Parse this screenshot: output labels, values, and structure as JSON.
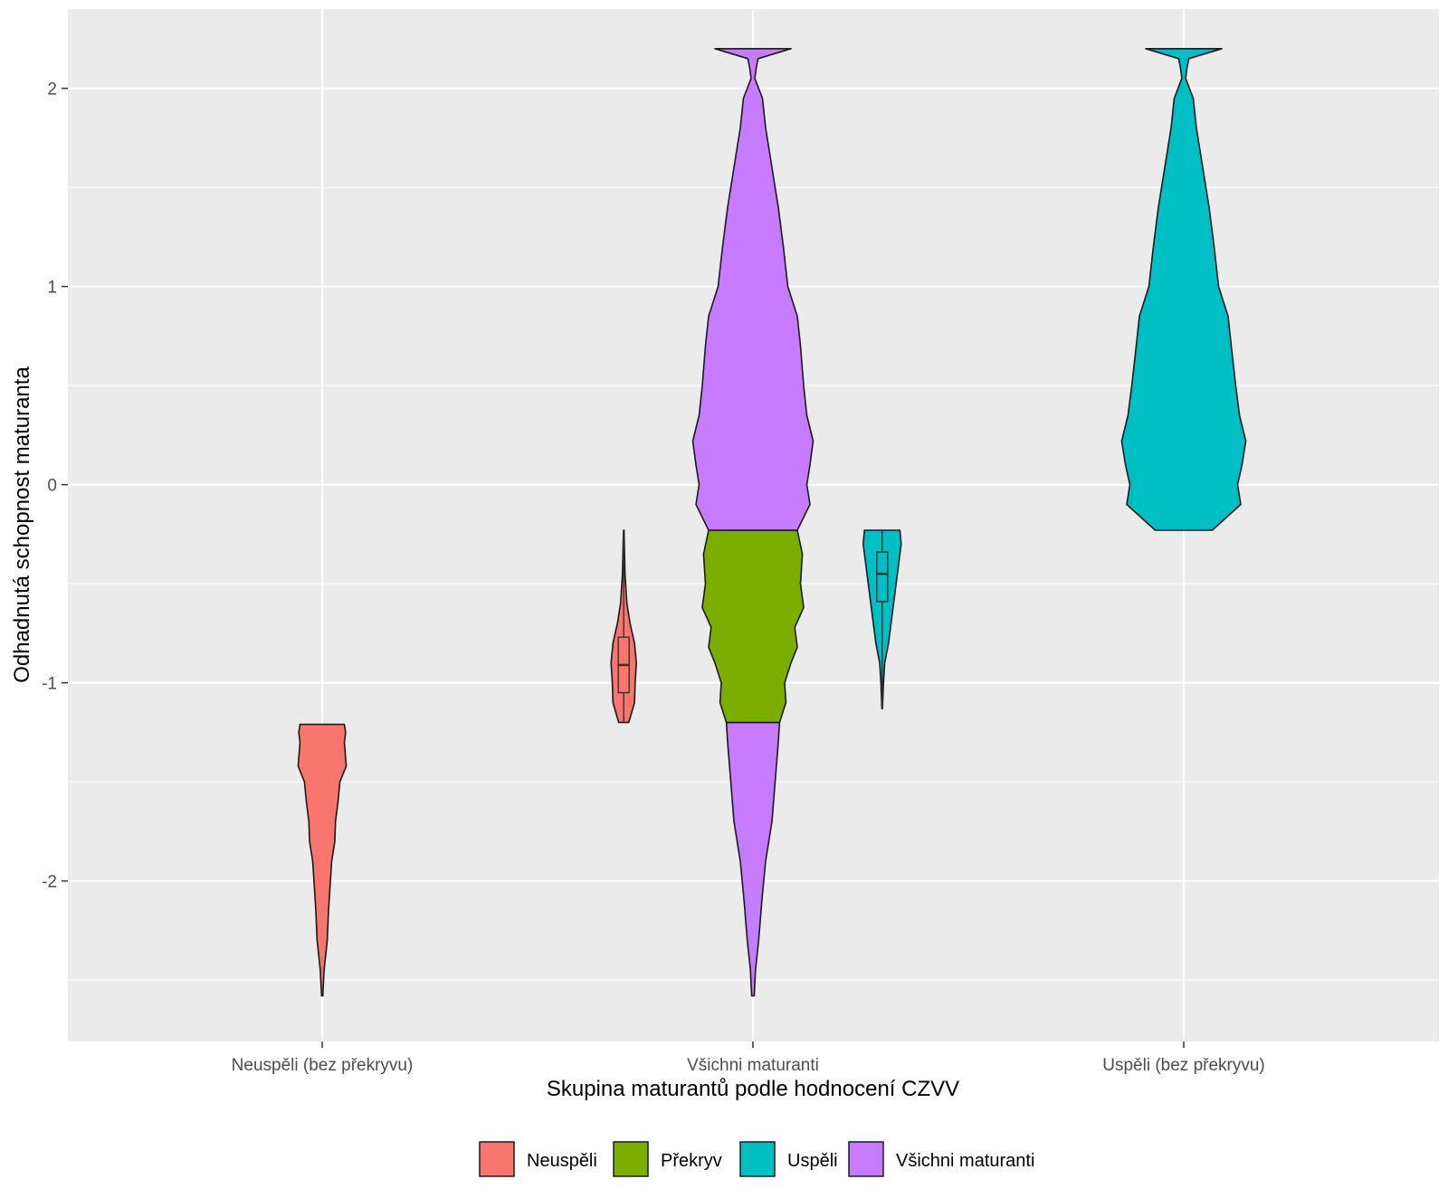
{
  "chart_data": {
    "type": "violin",
    "title": "",
    "xlabel": "Skupina maturantů podle hodnocení CZVV",
    "ylabel": "Odhadnutá schopnost maturanta",
    "categories": [
      "Neuspěli (bez překryvu)",
      "Všichni maturanti",
      "Uspěli (bez překryvu)"
    ],
    "ylim": [
      -2.81,
      2.4
    ],
    "y_ticks": [
      -2,
      -1,
      0,
      1,
      2
    ],
    "y_tick_labels": [
      "-2",
      "-1",
      "0",
      "1",
      "2"
    ],
    "grid": true,
    "legend": {
      "position": "bottom",
      "entries": [
        {
          "label": "Neuspěli",
          "color": "#F8766D"
        },
        {
          "label": "Překryv",
          "color": "#7CAE00"
        },
        {
          "label": "Uspěli",
          "color": "#00BFC4"
        },
        {
          "label": "Všichni maturanti",
          "color": "#C77CFF"
        }
      ]
    },
    "series": [
      {
        "group": "Neuspěli",
        "category": "Neuspěli (bez překryvu)",
        "x_offset": 0,
        "color": "#F8766D",
        "profile": [
          [
            -2.58,
            0.01
          ],
          [
            -2.45,
            0.03
          ],
          [
            -2.3,
            0.08
          ],
          [
            -2.15,
            0.1
          ],
          [
            -2.0,
            0.13
          ],
          [
            -1.9,
            0.15
          ],
          [
            -1.8,
            0.2
          ],
          [
            -1.7,
            0.21
          ],
          [
            -1.6,
            0.25
          ],
          [
            -1.5,
            0.28
          ],
          [
            -1.42,
            0.38
          ],
          [
            -1.3,
            0.35
          ],
          [
            -1.25,
            0.37
          ],
          [
            -1.21,
            0.35
          ]
        ]
      },
      {
        "group": "Všichni maturanti",
        "category": "Všichni maturanti",
        "x_offset": 0,
        "color": "#C77CFF",
        "y_range": [
          -2.58,
          -1.2
        ],
        "profile": [
          [
            -2.58,
            0.02
          ],
          [
            -2.45,
            0.04
          ],
          [
            -2.3,
            0.09
          ],
          [
            -2.1,
            0.14
          ],
          [
            -1.9,
            0.2
          ],
          [
            -1.7,
            0.3
          ],
          [
            -1.5,
            0.35
          ],
          [
            -1.3,
            0.4
          ],
          [
            -1.2,
            0.42
          ]
        ]
      },
      {
        "group": "Překryv",
        "category": "Všichni maturanti",
        "x_offset": 0,
        "color": "#7CAE00",
        "profile": [
          [
            -1.2,
            0.42
          ],
          [
            -1.1,
            0.52
          ],
          [
            -1.0,
            0.5
          ],
          [
            -0.9,
            0.6
          ],
          [
            -0.82,
            0.7
          ],
          [
            -0.72,
            0.66
          ],
          [
            -0.62,
            0.8
          ],
          [
            -0.5,
            0.75
          ],
          [
            -0.35,
            0.78
          ],
          [
            -0.23,
            0.7
          ]
        ]
      },
      {
        "group": "Všichni maturanti",
        "category": "Všichni maturanti",
        "x_offset": 0,
        "color": "#C77CFF",
        "y_range": [
          -0.23,
          2.2
        ],
        "profile": [
          [
            -0.23,
            0.7
          ],
          [
            -0.1,
            0.9
          ],
          [
            0.0,
            0.85
          ],
          [
            0.1,
            0.9
          ],
          [
            0.22,
            0.95
          ],
          [
            0.35,
            0.85
          ],
          [
            0.5,
            0.8
          ],
          [
            0.7,
            0.75
          ],
          [
            0.85,
            0.7
          ],
          [
            1.0,
            0.55
          ],
          [
            1.2,
            0.48
          ],
          [
            1.4,
            0.4
          ],
          [
            1.6,
            0.3
          ],
          [
            1.8,
            0.2
          ],
          [
            1.95,
            0.15
          ],
          [
            2.05,
            0.03
          ],
          [
            2.1,
            0.05
          ],
          [
            2.15,
            0.08
          ],
          [
            2.2,
            0.6
          ]
        ]
      },
      {
        "group": "Neuspěli",
        "category": "Všichni maturanti",
        "x_offset": -0.3,
        "color": "#F8766D",
        "profile": [
          [
            -1.2,
            0.08
          ],
          [
            -1.1,
            0.17
          ],
          [
            -1.0,
            0.18
          ],
          [
            -0.9,
            0.2
          ],
          [
            -0.8,
            0.17
          ],
          [
            -0.7,
            0.1
          ],
          [
            -0.6,
            0.05
          ],
          [
            -0.45,
            0.02
          ],
          [
            -0.23,
            0.005
          ]
        ],
        "box": {
          "q1": -1.05,
          "median": -0.91,
          "q3": -0.77,
          "whisker_low": -1.2,
          "whisker_high": -0.23
        }
      },
      {
        "group": "Uspěli",
        "category": "Všichni maturanti",
        "x_offset": 0.3,
        "color": "#00BFC4",
        "profile": [
          [
            -1.13,
            0.005
          ],
          [
            -1.0,
            0.02
          ],
          [
            -0.9,
            0.04
          ],
          [
            -0.8,
            0.1
          ],
          [
            -0.7,
            0.14
          ],
          [
            -0.6,
            0.18
          ],
          [
            -0.5,
            0.22
          ],
          [
            -0.4,
            0.26
          ],
          [
            -0.3,
            0.3
          ],
          [
            -0.23,
            0.28
          ]
        ],
        "box": {
          "q1": -0.59,
          "median": -0.45,
          "q3": -0.34,
          "whisker_low": -1.13,
          "whisker_high": -0.23
        }
      },
      {
        "group": "Uspěli",
        "category": "Uspěli (bez překryvu)",
        "x_offset": 0,
        "color": "#00BFC4",
        "profile": [
          [
            -0.23,
            0.45
          ],
          [
            -0.1,
            0.9
          ],
          [
            0.0,
            0.85
          ],
          [
            0.1,
            0.92
          ],
          [
            0.22,
            0.98
          ],
          [
            0.35,
            0.88
          ],
          [
            0.5,
            0.82
          ],
          [
            0.7,
            0.75
          ],
          [
            0.85,
            0.7
          ],
          [
            1.0,
            0.55
          ],
          [
            1.2,
            0.48
          ],
          [
            1.4,
            0.4
          ],
          [
            1.6,
            0.3
          ],
          [
            1.8,
            0.2
          ],
          [
            1.95,
            0.15
          ],
          [
            2.05,
            0.03
          ],
          [
            2.1,
            0.05
          ],
          [
            2.15,
            0.08
          ],
          [
            2.2,
            0.6
          ]
        ]
      }
    ]
  }
}
